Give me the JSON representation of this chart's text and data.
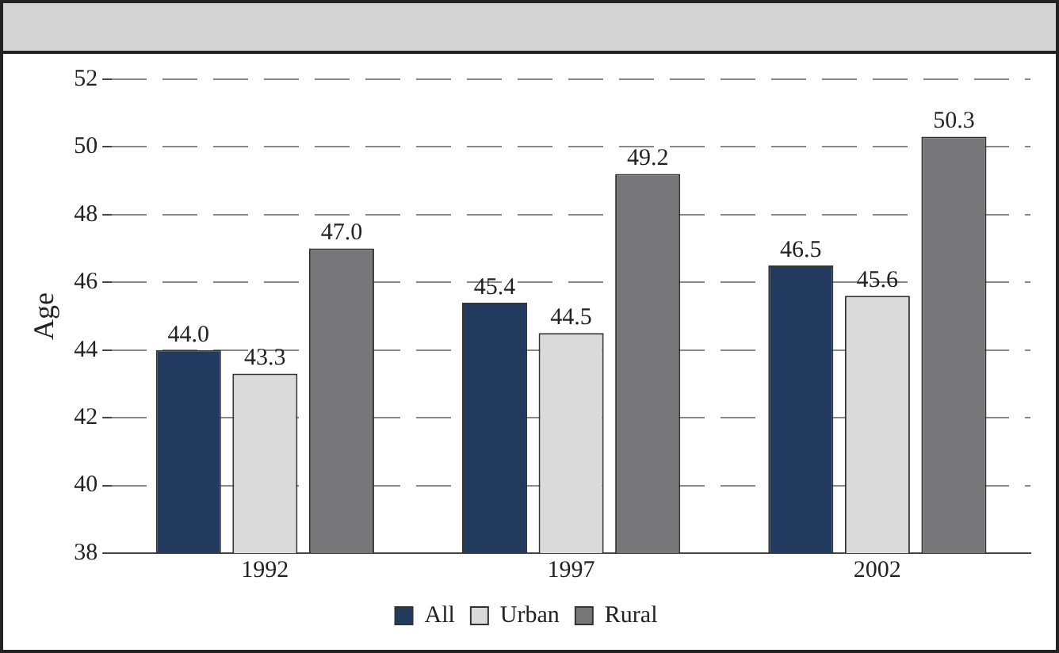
{
  "chart_data": {
    "type": "bar",
    "ylabel": "Age",
    "categories": [
      "1992",
      "1997",
      "2002"
    ],
    "series": [
      {
        "name": "All",
        "color": "#213a5e",
        "values": [
          44.0,
          45.4,
          46.5
        ],
        "value_labels": [
          "44.0",
          "45.4",
          "46.5"
        ]
      },
      {
        "name": "Urban",
        "color": "#dadadb",
        "values": [
          43.3,
          44.5,
          45.6
        ],
        "value_labels": [
          "43.3",
          "44.5",
          "45.6"
        ]
      },
      {
        "name": "Rural",
        "color": "#77777a",
        "values": [
          47.0,
          49.2,
          50.3
        ],
        "value_labels": [
          "47.0",
          "49.2",
          "50.3"
        ]
      }
    ],
    "ylim": [
      38,
      52
    ],
    "yticks": [
      38,
      40,
      42,
      44,
      46,
      48,
      50,
      52
    ],
    "grid": "y",
    "legend": "bottom"
  }
}
